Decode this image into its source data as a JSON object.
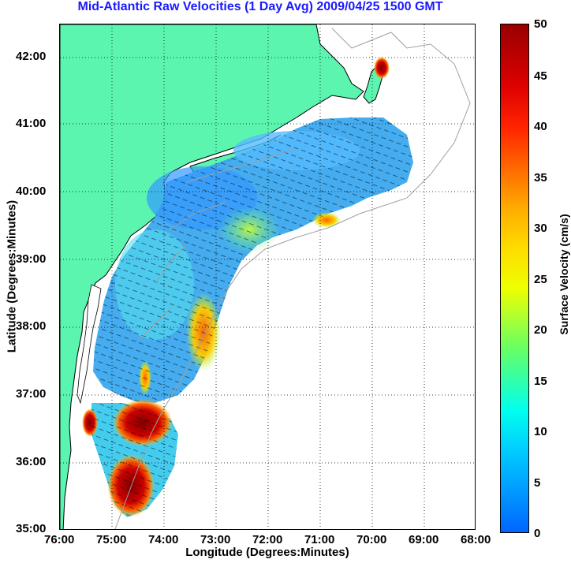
{
  "title": "Mid-Atlantic Raw Velocities (1 Day Avg) 2009/04/25 1500 GMT",
  "xlabel": "Longitude (Degrees:Minutes)",
  "ylabel": "Latitude (Degrees:Minutes)",
  "x_ticks": [
    "76:00",
    "75:00",
    "74:00",
    "73:00",
    "72:00",
    "71:00",
    "70:00",
    "69:00",
    "68:00"
  ],
  "y_ticks": [
    "35:00",
    "36:00",
    "37:00",
    "38:00",
    "39:00",
    "40:00",
    "41:00",
    "42:00"
  ],
  "colorbar": {
    "title": "Surface Velocity (cm/s)",
    "ticks": [
      "0",
      "5",
      "10",
      "15",
      "20",
      "25",
      "30",
      "35",
      "40",
      "45",
      "50"
    ],
    "range": [
      0,
      50
    ]
  },
  "colors": {
    "land": "#5cf5b0",
    "title": "#1a1aff",
    "coastline": "#000000",
    "bathymetry": "#a0a0a0"
  }
}
